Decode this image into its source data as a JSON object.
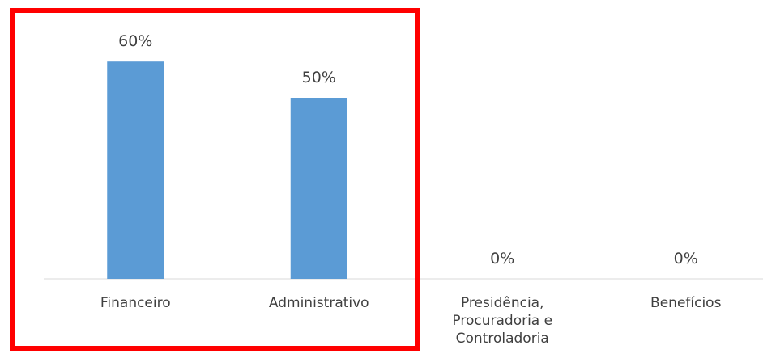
{
  "chart_data": {
    "type": "bar",
    "categories": [
      "Financeiro",
      "Administrativo",
      "Presidência, Procuradoria e Controladoria",
      "Benefícios"
    ],
    "values": [
      60,
      50,
      0,
      0
    ],
    "value_labels": [
      "60%",
      "50%",
      "0%",
      "0%"
    ],
    "color": "#5b9bd5"
  }
}
